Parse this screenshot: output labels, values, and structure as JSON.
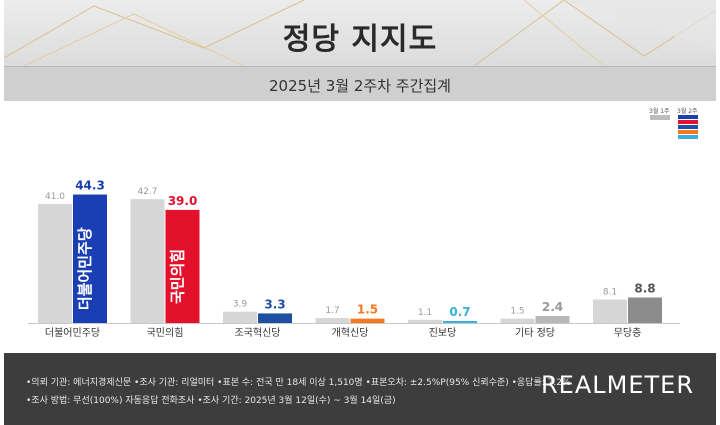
{
  "header": {
    "title": "정당 지지도",
    "subtitle": "2025년 3월 2주차 주간집계"
  },
  "legend": {
    "prev_label": "3월 1주",
    "curr_label": "3월 2주",
    "prev_color": "#c9c9c9",
    "curr_colors": [
      "#1a3fb5",
      "#e3112c",
      "#1f4fa0",
      "#f47920",
      "#3bb0d8"
    ]
  },
  "chart_data": {
    "type": "bar",
    "categories": [
      "더불어민주당",
      "국민의힘",
      "조국혁신당",
      "개혁신당",
      "진보당",
      "기타 정당",
      "무당층"
    ],
    "series": [
      {
        "name": "3월 1주",
        "values": [
          41.0,
          42.7,
          3.9,
          1.7,
          1.1,
          1.5,
          8.1
        ]
      },
      {
        "name": "3월 2주",
        "values": [
          44.3,
          39.0,
          3.3,
          1.5,
          0.7,
          2.4,
          8.8
        ]
      }
    ],
    "value_labels_prev": [
      "41.0",
      "42.7",
      "3.9",
      "1.7",
      "1.1",
      "1.5",
      "8.1"
    ],
    "value_labels_curr": [
      "44.3",
      "39.0",
      "3.3",
      "1.5",
      "0.7",
      "2.4",
      "8.8"
    ],
    "colors_curr": [
      "#1a3fb5",
      "#e3112c",
      "#1f4fa0",
      "#f47920",
      "#3bb0d8",
      "#b8b8b8",
      "#8c8c8c"
    ],
    "label_colors_curr": [
      "#1a3fb5",
      "#e3112c",
      "#1f4fa0",
      "#f47920",
      "#3bb0d8",
      "#9a9a9a",
      "#555555"
    ],
    "bar_logos": [
      "더불어민주당",
      "국민의힘"
    ],
    "grid": false,
    "legend_position": "top-right"
  },
  "footer": {
    "line1": "•의뢰 기관: 에너지경제신문  •조사 기관: 리얼미터  •표본 수: 전국 만 18세 이상 1,510명  •표본오차: ±2.5%P(95% 신뢰수준)  •응답률: 7.2%",
    "line2": "•조사 방법: 무선(100%) 자동응답 전화조사  •조사 기간: 2025년 3월 12일(수) ~ 3월 14일(금)",
    "brand": "REALMETER"
  }
}
